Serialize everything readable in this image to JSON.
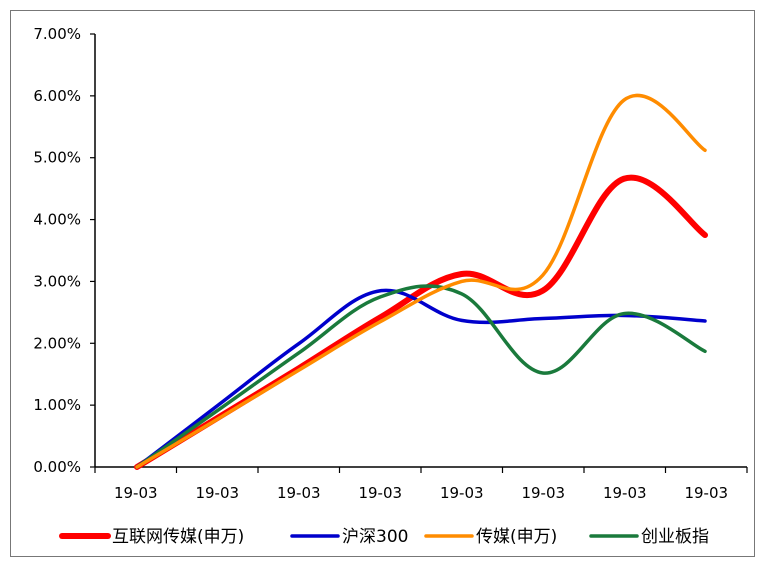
{
  "chart_data": {
    "type": "line",
    "title": "",
    "xlabel": "",
    "ylabel": "",
    "ylim": [
      0,
      7
    ],
    "yticks": [
      "0.00%",
      "1.00%",
      "2.00%",
      "3.00%",
      "4.00%",
      "5.00%",
      "6.00%",
      "7.00%"
    ],
    "x_tick_labels": [
      "19-03",
      "19-03",
      "19-03",
      "19-03",
      "19-03",
      "19-03",
      "19-03",
      "19-03"
    ],
    "legend_position": "bottom",
    "series": [
      {
        "name": "互联网传媒(申万)",
        "color": "#ff0000",
        "values": [
          0.0,
          0.8,
          1.6,
          2.42,
          3.12,
          2.85,
          4.66,
          3.75
        ]
      },
      {
        "name": "沪深300",
        "color": "#0000cc",
        "values": [
          0.0,
          1.0,
          2.0,
          2.85,
          2.37,
          2.4,
          2.45,
          2.36
        ]
      },
      {
        "name": "传媒(申万)",
        "color": "#ff8c00",
        "values": [
          0.0,
          0.78,
          1.57,
          2.35,
          3.0,
          3.1,
          5.93,
          5.12
        ]
      },
      {
        "name": "创业板指",
        "color": "#1a7a3c",
        "values": [
          0.0,
          0.92,
          1.85,
          2.75,
          2.8,
          1.52,
          2.48,
          1.87
        ]
      }
    ]
  }
}
